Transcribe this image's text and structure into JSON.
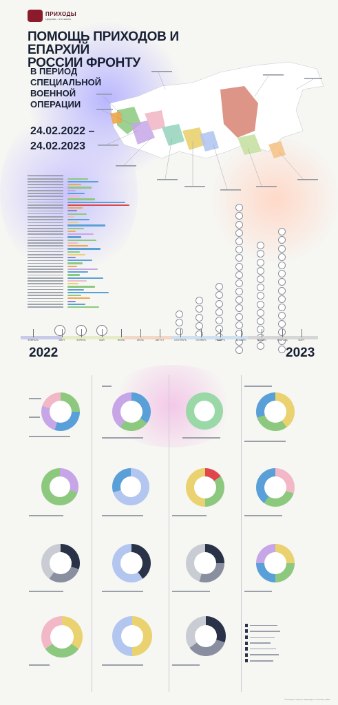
{
  "logo": {
    "name": "ПРИХОДЫ",
    "tagline": "Церковь - это жизнь"
  },
  "title": {
    "line1": "ПОМОЩЬ ПРИХОДОВ И ЕПАРХИЙ",
    "line2": "РОССИИ ФРОНТУ",
    "sub1": "В ПЕРИОД",
    "sub2": "СПЕЦИАЛЬНОЙ",
    "sub3": "ВОЕННОЙ",
    "sub4": "ОПЕРАЦИИ",
    "date1": "24.02.2022 –",
    "date2": "24.02.2023"
  },
  "colors": {
    "accent": "#172033",
    "brand": "#8b1a2b",
    "red": "#e0474c",
    "blue": "#5aa0d8",
    "green": "#8cc97e",
    "orange": "#f0a64a",
    "purple": "#8a7fd8"
  },
  "timeline": {
    "months": [
      "ФЕВРАЛЬ",
      "МАРТ",
      "АПРЕЛЬ",
      "МАЙ",
      "ИЮНЬ",
      "ИЮЛЬ",
      "АВГУСТ",
      "СЕНТЯБРЬ",
      "ОКТЯБРЬ",
      "НОЯБРЬ",
      "ДЕКАБРЬ",
      "ЯНВАРЬ",
      "ФЕВРАЛЬ",
      "МАРТ"
    ],
    "year_start": "2022",
    "year_end": "2023"
  },
  "icons": [
    "cross-icon",
    "coin-icon",
    "person-icon",
    "box-icon"
  ],
  "footer": "© интернет-портал «Приходы» по итогам, 2023"
}
